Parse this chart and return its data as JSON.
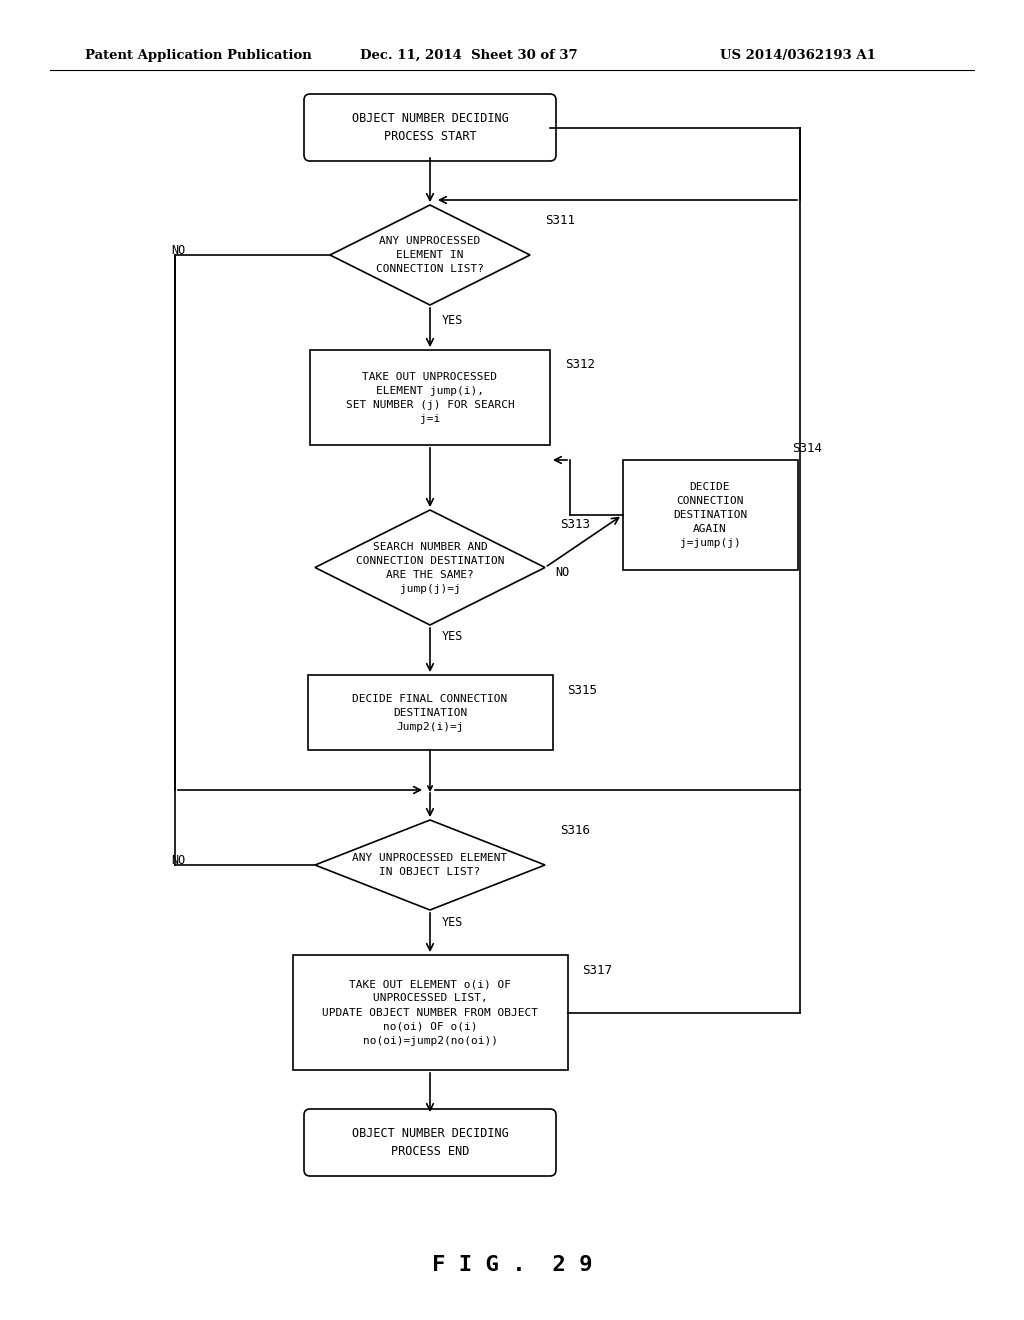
{
  "bg_color": "#ffffff",
  "header_left": "Patent Application Publication",
  "header_mid": "Dec. 11, 2014  Sheet 30 of 37",
  "header_right": "US 2014/0362193 A1",
  "figure_label": "F I G .  2 9"
}
